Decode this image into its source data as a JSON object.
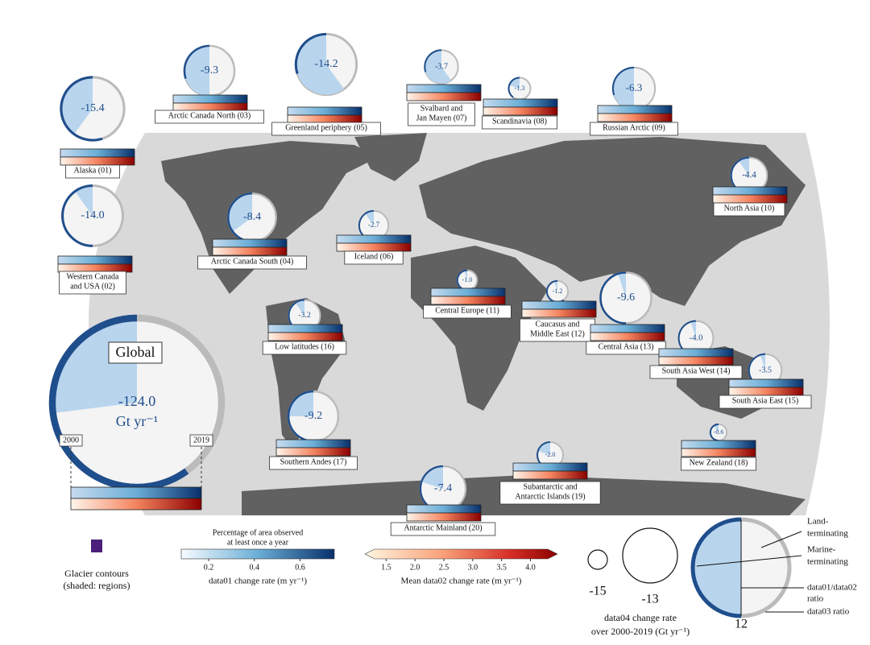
{
  "regions": [
    {
      "label": [
        "Alaska (01)"
      ],
      "value": -15.4,
      "share": 0.4,
      "ring": 0.55
    },
    {
      "label": [
        "Western Canada",
        "and USA (02)"
      ],
      "value": -14,
      "value_label": "-14.0",
      "share": 0.1,
      "ring": 0.5
    },
    {
      "label": [
        "Arctic Canada North (03)"
      ],
      "value": -9.3,
      "share": 0.5,
      "ring": 0.3
    },
    {
      "label": [
        "Arctic Canada South (04)"
      ],
      "value": -8.4,
      "share": 0.35,
      "ring": 0.5
    },
    {
      "label": [
        "Greenland periphery (05)"
      ],
      "value": -14.2,
      "share": 0.6,
      "ring": 0.3
    },
    {
      "label": [
        "Iceland (06)"
      ],
      "value": -2.7,
      "share": 0.1,
      "ring": 0.5
    },
    {
      "label": [
        "Svalbard and",
        "Jan Mayen (07)"
      ],
      "value": -3.7,
      "share": 0.6,
      "ring": 0.3
    },
    {
      "label": [
        "Scandinavia (08)"
      ],
      "value": -1.3,
      "share": 0.2,
      "ring": 0.4
    },
    {
      "label": [
        "Russian Arctic (09)"
      ],
      "value": -6.3,
      "share": 0.5,
      "ring": 0.3
    },
    {
      "label": [
        "North Asia (10)"
      ],
      "value": -4.4,
      "share": 0.1,
      "ring": 0.5
    },
    {
      "label": [
        "Central Europe (11)"
      ],
      "value": -1,
      "value_label": "-1.0",
      "share": 0.05,
      "ring": 0.6
    },
    {
      "label": [
        "Caucasus and",
        "Middle East (12)"
      ],
      "value": -1.2,
      "share": 0.05,
      "ring": 0.6
    },
    {
      "label": [
        "Central Asia (13)"
      ],
      "value": -9.6,
      "share": 0.05,
      "ring": 0.5
    },
    {
      "label": [
        "South Asia West (14)"
      ],
      "value": -4,
      "value_label": "-4.0",
      "share": 0.05,
      "ring": 0.6
    },
    {
      "label": [
        "South Asia East (15)"
      ],
      "value": -3.5,
      "share": 0.05,
      "ring": 0.6
    },
    {
      "label": [
        "Low latitudes (16)"
      ],
      "value": -3.2,
      "share": 0.1,
      "ring": 0.5
    },
    {
      "label": [
        "Southern Andes (17)"
      ],
      "value": -9.2,
      "share": 0.25,
      "ring": 0.55
    },
    {
      "label": [
        "New Zealand (18)"
      ],
      "value": -0.6,
      "share": 0.1,
      "ring": 0.5
    },
    {
      "label": [
        "Subantarctic and",
        "Antarctic Islands (19)"
      ],
      "value": -2,
      "value_label": "-2.0",
      "share": 0.2,
      "ring": 0.5
    },
    {
      "label": [
        "Antarctic Mainland (20)"
      ],
      "value": -7.4,
      "share": 0.2,
      "ring": 0.5
    }
  ],
  "global": {
    "title": "Global",
    "value": -124,
    "value_label": "-124.0",
    "unit": "Gt yr⁻¹",
    "start": "2000",
    "end": "2019",
    "share": 0.27,
    "ring": 0.6
  },
  "legend": {
    "contours": [
      "Glacier contours",
      "(shaded: regions)"
    ],
    "colorbar1": {
      "title": [
        "Percentage of area observed",
        "at least once a year"
      ],
      "label": "data01 change rate (m yr⁻¹)",
      "lim": [
        0.08,
        0.75
      ],
      "ticks": [
        0.2,
        0.4,
        0.6
      ]
    },
    "colorbar2": {
      "label": "Mean data02 change rate (m yr⁻¹)",
      "lim": [
        1.3,
        4.3
      ],
      "ticks": [
        1.5,
        {
          "value": 2,
          "label": "2.0"
        },
        2.5,
        {
          "value": 3,
          "label": "3.0"
        },
        3.5,
        {
          "value": 4,
          "label": "4.0"
        }
      ]
    },
    "size": {
      "values": [
        -15,
        -13
      ],
      "title": [
        "data04 change rate",
        "over 2000-2019 (Gt yr⁻¹)"
      ]
    },
    "pie": {
      "land": [
        "Land-",
        "terminating"
      ],
      "marine": [
        "Marine-",
        "terminating"
      ],
      "ratio1": [
        "data01/data02",
        "ratio"
      ],
      "ratio2": "data03 ratio",
      "value": 12
    }
  }
}
